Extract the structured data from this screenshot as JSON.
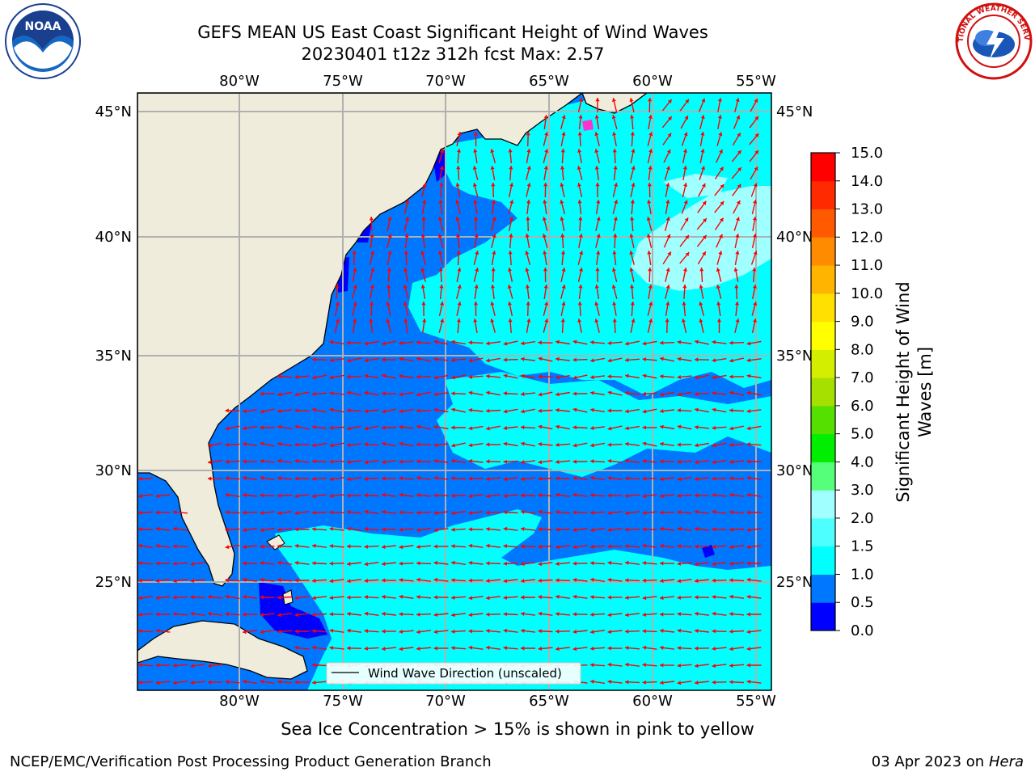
{
  "header": {
    "title_line1": "GEFS MEAN US East Coast Significant Height of Wind Waves",
    "title_line2": "20230401 t12z 312h fcst   Max: 2.57"
  },
  "map": {
    "lon_labels": [
      "80°W",
      "75°W",
      "70°W",
      "65°W",
      "60°W",
      "55°W"
    ],
    "lat_labels": [
      "45°N",
      "40°N",
      "35°N",
      "30°N",
      "25°N"
    ],
    "legend_label": "Wind Wave Direction (unscaled)",
    "colors": {
      "land": "#efecdc",
      "very_low": "#0000ff",
      "low": "#0077ff",
      "mid": "#00ffff",
      "high": "#a0ffff",
      "arrow": "#ff0000",
      "grid": "#b0b0b0"
    }
  },
  "colorbar": {
    "label_line1": "Significant Height of Wind",
    "label_line2": "Waves [m]",
    "ticks": [
      "0.0",
      "0.5",
      "1.0",
      "1.5",
      "2.0",
      "3.0",
      "4.0",
      "5.0",
      "6.0",
      "7.0",
      "8.0",
      "9.0",
      "10.0",
      "11.0",
      "12.0",
      "13.0",
      "14.0",
      "15.0"
    ],
    "colors": [
      "#0000ff",
      "#0077ff",
      "#00ffff",
      "#4dffff",
      "#a0ffff",
      "#55ff7a",
      "#00ee00",
      "#55e000",
      "#a6e000",
      "#d4ee00",
      "#ffff00",
      "#ffe000",
      "#ffb400",
      "#ff8c00",
      "#ff5a00",
      "#ff2a00",
      "#ff0000"
    ]
  },
  "subtitle": "Sea Ice Concentration > 15% is shown in pink to yellow",
  "footer": {
    "org": "NCEP/EMC/Verification Post Processing Product Generation Branch",
    "date": "03 Apr 2023 on ",
    "machine": "Hera"
  },
  "logos": {
    "noaa_text": "NOAA",
    "nws_text": "NATIONAL WEATHER SERVICE"
  }
}
